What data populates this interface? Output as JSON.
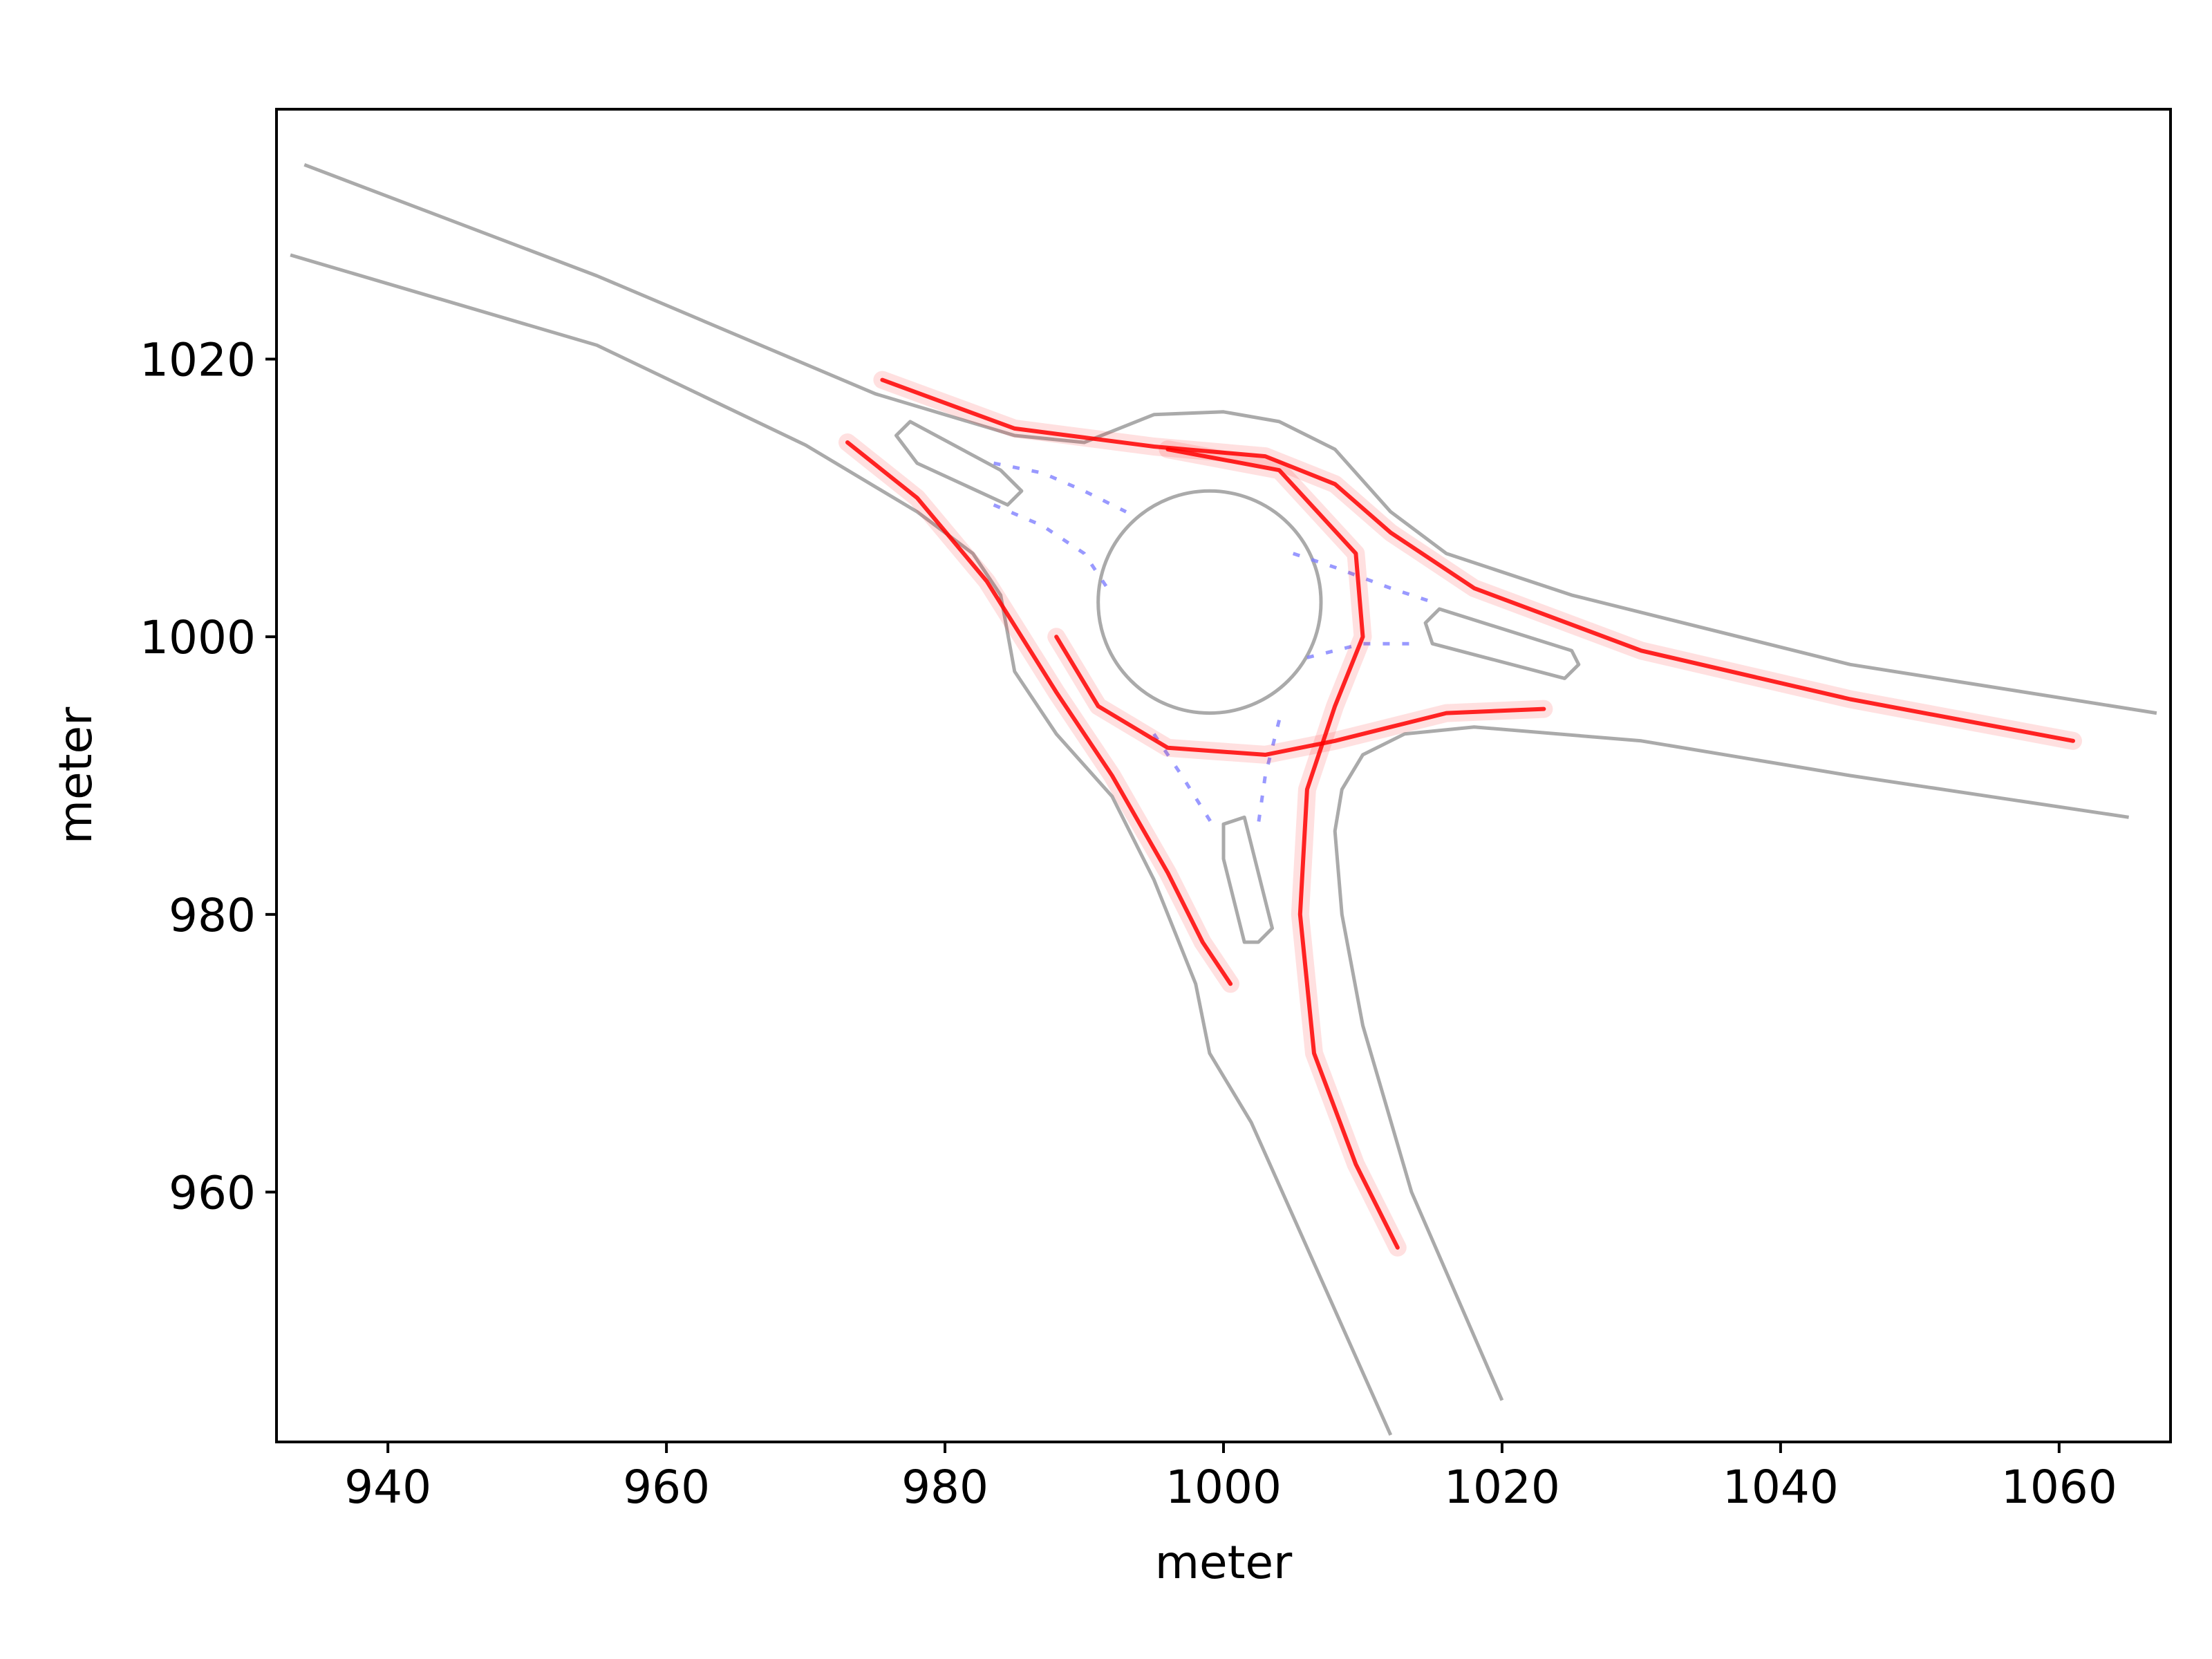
{
  "chart_data": {
    "type": "line",
    "title": "",
    "xlabel": "meter",
    "ylabel": "meter",
    "xlim": [
      932,
      1068
    ],
    "ylim": [
      942,
      1038
    ],
    "xticks": [
      940,
      960,
      980,
      1000,
      1020,
      1040,
      1060
    ],
    "yticks": [
      960,
      980,
      1000,
      1020
    ],
    "xtick_labels": [
      "940",
      "960",
      "980",
      "1000",
      "1020",
      "1040",
      "1060"
    ],
    "ytick_labels": [
      "960",
      "980",
      "1000",
      "1020"
    ],
    "grid": false,
    "legend": "none",
    "colors": {
      "road_edge": "#aaaaaa",
      "trajectory": "#ff0000",
      "lane_marking": "#8080ff"
    },
    "road_edges": [
      {
        "x": [
          934,
          955,
          975,
          985,
          990,
          995,
          1000,
          1004,
          1008,
          1012,
          1016,
          1025,
          1045,
          1067
        ],
        "y": [
          1034,
          1026,
          1017.5,
          1014.5,
          1014,
          1016,
          1016.2,
          1015.5,
          1013.5,
          1009,
          1006,
          1003,
          998,
          994.5
        ]
      },
      {
        "x": [
          933,
          955,
          970,
          978,
          982,
          984,
          985,
          988,
          992,
          995,
          998,
          999,
          1002,
          1012
        ],
        "y": [
          1027.5,
          1021,
          1013.8,
          1009,
          1006,
          1003,
          997.5,
          993,
          988.5,
          982.5,
          975,
          970,
          965,
          942.5
        ]
      },
      {
        "x": [
          1020,
          1013.5,
          1010,
          1008.5,
          1008,
          1008.5,
          1010,
          1013,
          1018,
          1030,
          1045,
          1065
        ],
        "y": [
          945,
          960,
          972,
          980,
          986,
          989,
          991.5,
          993,
          993.5,
          992.5,
          990,
          987
        ]
      }
    ],
    "islands": [
      {
        "name": "central",
        "center": [
          999,
          1002.5
        ],
        "radius": 8
      },
      {
        "name": "west-splitter",
        "x": [
          976.5,
          977.5,
          984,
          985.5,
          984.5,
          978,
          976.5
        ],
        "y": [
          1014.5,
          1015.5,
          1012,
          1010.5,
          1009.5,
          1012.5,
          1014.5
        ]
      },
      {
        "name": "east-splitter",
        "x": [
          1014.5,
          1015.5,
          1025,
          1025.5,
          1024.5,
          1015,
          1014.5
        ],
        "y": [
          1001,
          1002,
          999,
          998,
          997,
          999.5,
          1001
        ]
      },
      {
        "name": "south-splitter",
        "x": [
          1000,
          1001.5,
          1003.5,
          1002.5,
          1001.5,
          1000,
          1000
        ],
        "y": [
          986.5,
          987,
          979,
          978,
          978,
          984,
          986.5
        ]
      }
    ],
    "series": [
      {
        "x": [
          975.5,
          985,
          995,
          1003,
          1008,
          1012,
          1018,
          1030,
          1045,
          1061
        ],
        "y": [
          1018.5,
          1015,
          1013.7,
          1013,
          1011,
          1007.5,
          1003.5,
          999,
          995.5,
          992.5
        ]
      },
      {
        "x": [
          973,
          978,
          983,
          988,
          992,
          996,
          998.5,
          1000.5
        ],
        "y": [
          1014,
          1010,
          1004,
          996,
          990,
          983,
          978,
          975
        ]
      },
      {
        "x": [
          988,
          991,
          996,
          1003,
          1008,
          1012,
          1016,
          1023
        ],
        "y": [
          1000,
          995,
          992,
          991.5,
          992.5,
          993.5,
          994.5,
          994.8
        ]
      },
      {
        "x": [
          996,
          1004,
          1009.5,
          1010,
          1008,
          1006,
          1005.5,
          1006.5,
          1009.5,
          1012.5
        ],
        "y": [
          1013.5,
          1012,
          1006,
          1000,
          995,
          989,
          980,
          970,
          962,
          956
        ]
      }
    ],
    "lane_markings": [
      {
        "x": [
          983.5,
          987,
          990,
          993
        ],
        "y": [
          1012.5,
          1011.8,
          1010.5,
          1009
        ]
      },
      {
        "x": [
          983.5,
          987,
          990,
          992
        ],
        "y": [
          1009.5,
          1008,
          1006,
          1003
        ]
      },
      {
        "x": [
          1005,
          1008,
          1012,
          1015
        ],
        "y": [
          1006,
          1005,
          1003.5,
          1002.5
        ]
      },
      {
        "x": [
          1006,
          1010,
          1014
        ],
        "y": [
          998.5,
          999.5,
          999.5
        ]
      },
      {
        "x": [
          995,
          997,
          999.5
        ],
        "y": [
          993,
          990,
          986
        ]
      },
      {
        "x": [
          1004,
          1003,
          1002.5
        ],
        "y": [
          994,
          990,
          986.5
        ]
      }
    ]
  }
}
